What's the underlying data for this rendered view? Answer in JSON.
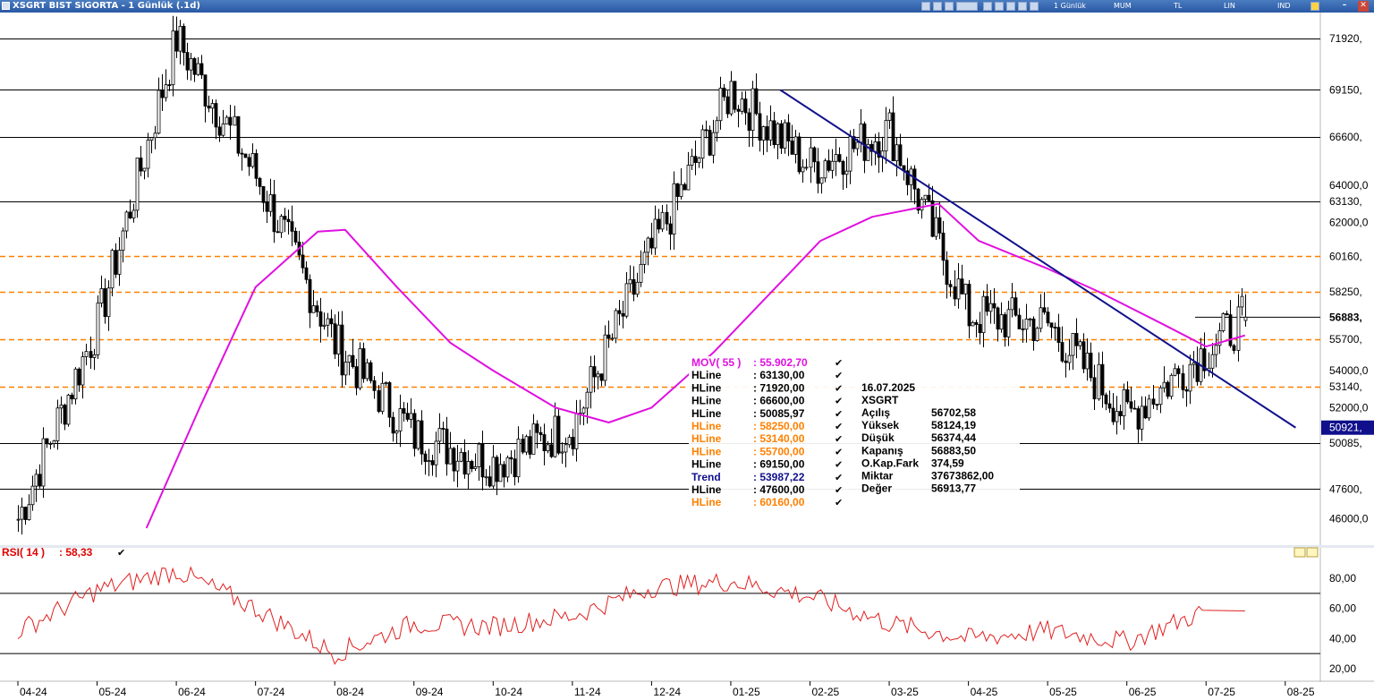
{
  "window": {
    "title": "XSGRT BIST SIGORTA - 1 Günlük (.1d)",
    "period": "1 Günlük",
    "bar_type": "MUM",
    "currency": "TL",
    "scale": "LIN",
    "indicator_menu": "IND",
    "close_glyph": "✕",
    "min_glyph": "–"
  },
  "price_axis": {
    "ticks": [
      "64000,0",
      "62000,0",
      "54000,0",
      "52000,0",
      "46000,0"
    ],
    "hline_labels": [
      {
        "text": "71920,",
        "y": 71920,
        "kind": "black"
      },
      {
        "text": "69150,",
        "y": 69150,
        "kind": "black"
      },
      {
        "text": "66600,",
        "y": 66600,
        "kind": "black"
      },
      {
        "text": "63130,",
        "y": 63130,
        "kind": "black"
      },
      {
        "text": "60160,",
        "y": 60160,
        "kind": "orange"
      },
      {
        "text": "58250,",
        "y": 58250,
        "kind": "orange"
      },
      {
        "text": "56883,",
        "y": 56883,
        "kind": "price"
      },
      {
        "text": "55700,",
        "y": 55700,
        "kind": "orange"
      },
      {
        "text": "53140,",
        "y": 53140,
        "kind": "orange"
      },
      {
        "text": "50921,",
        "y": 50921,
        "kind": "trend"
      },
      {
        "text": "50085,",
        "y": 50085,
        "kind": "black"
      },
      {
        "text": "47600,",
        "y": 47600,
        "kind": "black"
      }
    ]
  },
  "rsi_axis": {
    "ticks": [
      "80,00",
      "60,00",
      "40,00",
      "20,00"
    ]
  },
  "date_axis": [
    "04-24",
    "05-24",
    "06-24",
    "07-24",
    "08-24",
    "09-24",
    "10-24",
    "11-24",
    "12-24",
    "01-25",
    "02-25",
    "03-25",
    "04-25",
    "05-25",
    "06-25",
    "07-25",
    "08-25"
  ],
  "legend": [
    {
      "name": "MOV( 55 )",
      "value": ": 55.902,70",
      "color": "#e010e0"
    },
    {
      "name": "HLine",
      "value": ": 63130,00",
      "color": "#000000"
    },
    {
      "name": "HLine",
      "value": ": 71920,00",
      "color": "#000000"
    },
    {
      "name": "HLine",
      "value": ": 66600,00",
      "color": "#000000"
    },
    {
      "name": "HLine",
      "value": ": 50085,97",
      "color": "#000000"
    },
    {
      "name": "HLine",
      "value": ": 58250,00",
      "color": "#ff8000"
    },
    {
      "name": "HLine",
      "value": ": 53140,00",
      "color": "#ff8000"
    },
    {
      "name": "HLine",
      "value": ": 55700,00",
      "color": "#ff8000"
    },
    {
      "name": "HLine",
      "value": ": 69150,00",
      "color": "#000000"
    },
    {
      "name": "Trend",
      "value": ": 53987,22",
      "color": "#10108c"
    },
    {
      "name": "HLine",
      "value": ": 47600,00",
      "color": "#000000"
    },
    {
      "name": "HLine",
      "value": ": 60160,00",
      "color": "#ff8000"
    }
  ],
  "checkmark": "✔",
  "info": {
    "date": "16.07.2025",
    "symbol": "XSGRT",
    "rows": [
      {
        "label": "Açılış",
        "value": "56702,58"
      },
      {
        "label": "Yüksek",
        "value": "58124,19"
      },
      {
        "label": "Düşük",
        "value": "56374,44"
      },
      {
        "label": "Kapanış",
        "value": "56883,50"
      },
      {
        "label": "O.Kap.Fark",
        "value": "374,59"
      },
      {
        "label": "Miktar",
        "value": "37673862,00"
      },
      {
        "label": "Değer",
        "value": "56913,77"
      }
    ]
  },
  "rsi": {
    "label": "RSI( 14 )",
    "value": ": 58,33"
  },
  "colors": {
    "hline": "#000000",
    "orange": "#ff8000",
    "ma": "#e010e0",
    "trend": "#10108c",
    "rsi": "#e02020",
    "candle": "#000000"
  },
  "chart_data": [
    {
      "type": "candlestick",
      "title": "XSGRT BIST SIGORTA - 1 Günlük (.1d)",
      "x_range": [
        "2024-04",
        "2025-08"
      ],
      "ylim": [
        45000,
        72500
      ],
      "key_points": [
        {
          "date": "2024-04",
          "close": 46000
        },
        {
          "date": "2024-05",
          "close": 56500
        },
        {
          "date": "2024-06",
          "close": 71920
        },
        {
          "date": "2024-07",
          "close": 64500
        },
        {
          "date": "2024-08",
          "close": 55500
        },
        {
          "date": "2024-09",
          "close": 50500
        },
        {
          "date": "2024-10",
          "close": 49000
        },
        {
          "date": "2024-11",
          "close": 51000
        },
        {
          "date": "2024-12",
          "close": 60500
        },
        {
          "date": "2025-01",
          "close": 69150
        },
        {
          "date": "2025-02",
          "close": 65000
        },
        {
          "date": "2025-03",
          "close": 67000
        },
        {
          "date": "2025-04",
          "close": 57000
        },
        {
          "date": "2025-05",
          "close": 56500
        },
        {
          "date": "2025-06",
          "close": 51500
        },
        {
          "date": "2025-07-16",
          "open": 56702.58,
          "high": 58124.19,
          "low": 56374.44,
          "close": 56883.5
        }
      ],
      "moving_average": {
        "name": "MOV( 55 )",
        "last": 55902.7
      },
      "horizontal_lines": [
        71920,
        69150,
        66600,
        63130,
        60160,
        58250,
        55700,
        53140,
        50085.97,
        47600
      ],
      "trend_line": {
        "name": "Trend",
        "value": 53987.22,
        "from": {
          "date": "2025-01",
          "price": 69150
        },
        "to": {
          "date": "2025-08",
          "price": 50921
        }
      }
    },
    {
      "type": "line",
      "series": [
        {
          "name": "RSI( 14 )",
          "last": 58.33
        }
      ],
      "ylim": [
        10,
        100
      ],
      "reference_lines": [
        70,
        30
      ],
      "key_points": [
        {
          "date": "2024-04",
          "value": 45
        },
        {
          "date": "2024-05",
          "value": 72
        },
        {
          "date": "2024-06",
          "value": 85
        },
        {
          "date": "2024-07",
          "value": 60
        },
        {
          "date": "2024-08",
          "value": 30
        },
        {
          "date": "2024-09",
          "value": 50
        },
        {
          "date": "2024-10",
          "value": 48
        },
        {
          "date": "2024-11",
          "value": 55
        },
        {
          "date": "2024-12",
          "value": 74
        },
        {
          "date": "2025-01",
          "value": 78
        },
        {
          "date": "2025-02",
          "value": 68
        },
        {
          "date": "2025-03",
          "value": 50
        },
        {
          "date": "2025-04",
          "value": 40
        },
        {
          "date": "2025-05",
          "value": 45
        },
        {
          "date": "2025-06",
          "value": 38
        },
        {
          "date": "2025-07",
          "value": 58.33
        }
      ]
    }
  ]
}
